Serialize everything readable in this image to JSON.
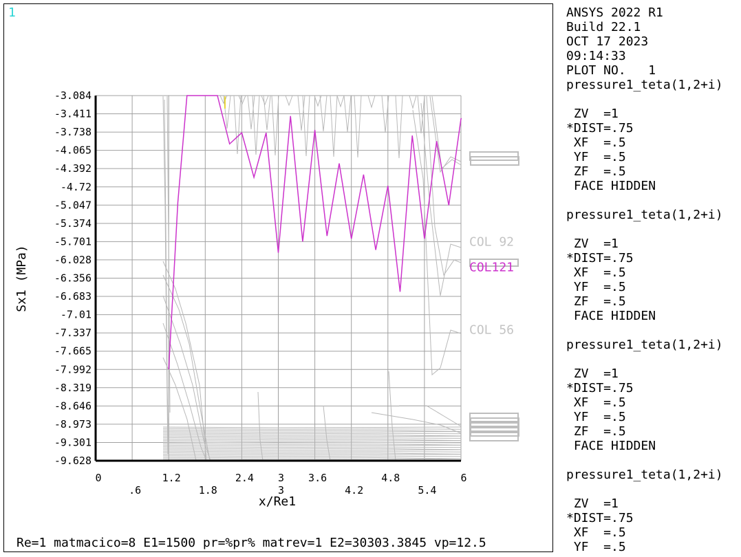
{
  "window_number": "1",
  "footer": "Re=1 matmacico=8 E1=1500 pr=%pr% matrev=1 E2=30303.3845 vp=12.5",
  "legend_lines": [
    "ANSYS 2022 R1",
    "Build 22.1",
    "OCT 17 2023",
    "09:14:33",
    "PLOT NO.   1",
    "pressure1_teta(1,2+i)",
    "",
    " ZV  =1",
    "*DIST=.75",
    " XF  =.5",
    " YF  =.5",
    " ZF  =.5",
    " FACE HIDDEN",
    "",
    "pressure1_teta(1,2+i)",
    "",
    " ZV  =1",
    "*DIST=.75",
    " XF  =.5",
    " YF  =.5",
    " ZF  =.5",
    " FACE HIDDEN",
    "",
    "pressure1_teta(1,2+i)",
    "",
    " ZV  =1",
    "*DIST=.75",
    " XF  =.5",
    " YF  =.5",
    " ZF  =.5",
    " FACE HIDDEN",
    "",
    "pressure1_teta(1,2+i)",
    "",
    " ZV  =1",
    "*DIST=.75",
    " XF  =.5",
    " YF  =.5"
  ],
  "colors": {
    "highlight": "#cc33cc",
    "gray_curves": "#b8b8b8",
    "grid": "#a0a0a0",
    "window_number": "#2ad4d4"
  },
  "chart_data": {
    "type": "line",
    "xlabel": "x/Re1",
    "ylabel": "Sx1 (MPa)",
    "xlim": [
      0,
      6
    ],
    "ylim": [
      -9.628,
      -3.084
    ],
    "x_ticks_top": [
      "0",
      "1.2",
      "2.4",
      "3",
      "3.6",
      "4.8",
      "6"
    ],
    "x_ticks_bottom": [
      ".6",
      "1.8",
      "3",
      "4.2",
      "5.4"
    ],
    "x_tick_values_top": [
      0,
      1.2,
      2.4,
      3,
      3.6,
      4.8,
      6
    ],
    "x_tick_values_bottom": [
      0.6,
      1.8,
      3,
      4.2,
      5.4
    ],
    "y_ticks": [
      "-3.084",
      "-3.411",
      "-3.738",
      "-4.065",
      "-4.392",
      "-4.72",
      "-5.047",
      "-5.374",
      "-5.701",
      "-6.028",
      "-6.356",
      "-6.683",
      "-7.01",
      "-7.337",
      "-7.665",
      "-7.992",
      "-8.319",
      "-8.646",
      "-8.973",
      "-9.301",
      "-9.628"
    ],
    "y_tick_values": [
      -3.084,
      -3.411,
      -3.738,
      -4.065,
      -4.392,
      -4.72,
      -5.047,
      -5.374,
      -5.701,
      -6.028,
      -6.356,
      -6.683,
      -7.01,
      -7.337,
      -7.665,
      -7.992,
      -8.319,
      -8.646,
      -8.973,
      -9.301,
      -9.628
    ],
    "grid": true,
    "series": [
      {
        "name": "COL121",
        "color": "#cc33cc",
        "x": [
          1.2,
          1.35,
          1.5,
          1.65,
          2.0,
          2.2,
          2.4,
          2.6,
          2.8,
          3.0,
          3.2,
          3.4,
          3.6,
          3.8,
          4.0,
          4.2,
          4.4,
          4.6,
          4.8,
          5.0,
          5.2,
          5.4,
          5.6,
          5.8,
          6.0,
          6.25
        ],
        "y": [
          -7.99,
          -5.0,
          -3.084,
          -3.084,
          -3.084,
          -3.95,
          -3.75,
          -4.55,
          -3.75,
          -5.9,
          -3.45,
          -5.7,
          -3.7,
          -5.6,
          -4.3,
          -5.65,
          -4.5,
          -5.85,
          -4.7,
          -6.6,
          -3.8,
          -5.65,
          -3.9,
          -5.05,
          -3.5,
          -3.4
        ]
      }
    ],
    "series_labels": [
      {
        "label": "COL 92",
        "y": -5.7
      },
      {
        "label": "COL 56",
        "y": -7.28
      },
      {
        "label": "COL121",
        "y": -6.16
      }
    ]
  }
}
